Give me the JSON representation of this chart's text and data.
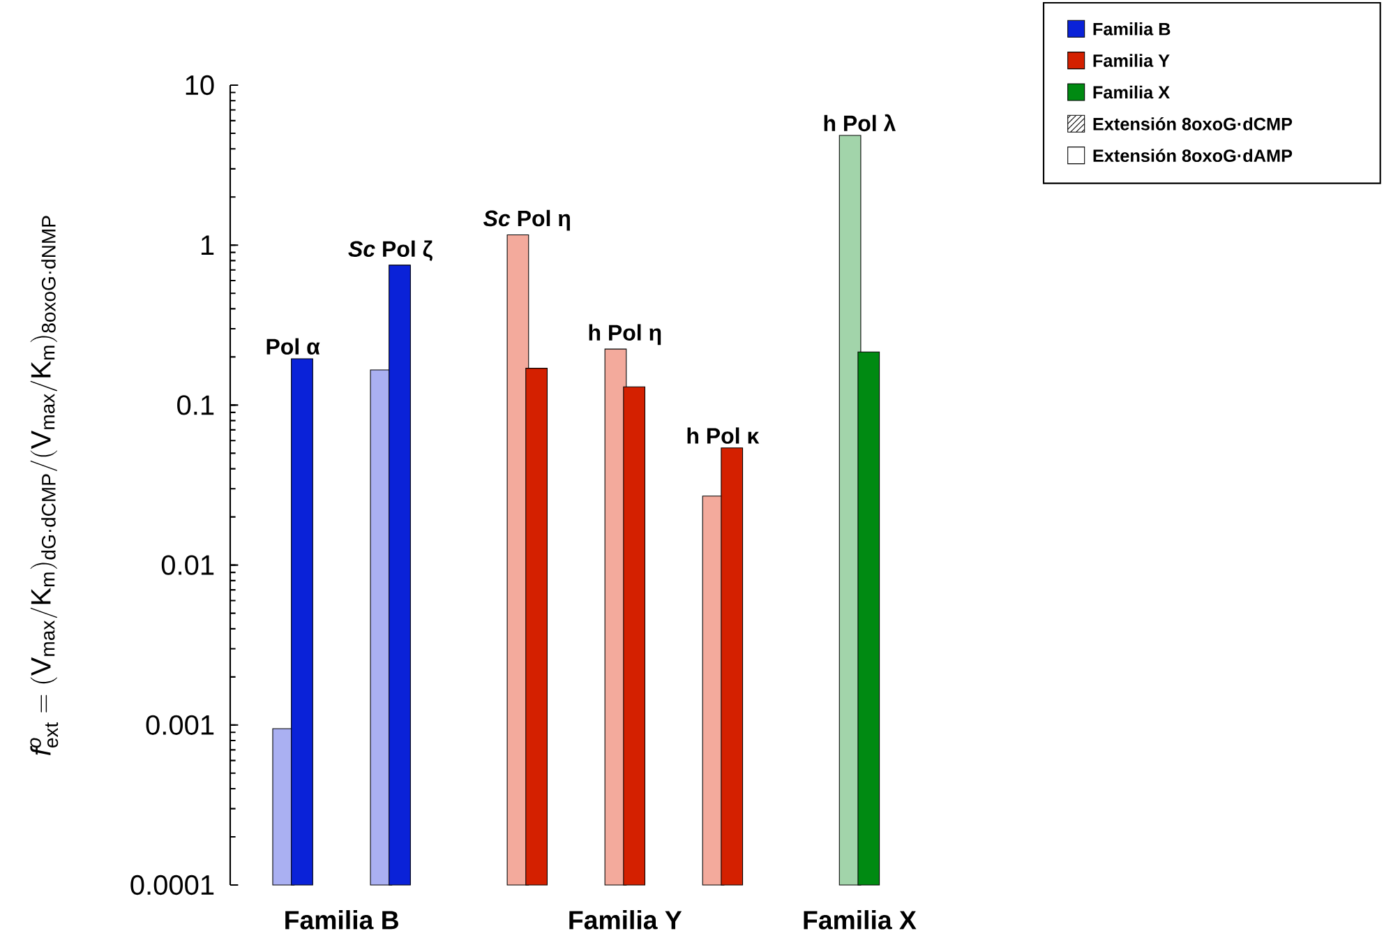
{
  "chart_data": {
    "type": "bar",
    "categories": [
      null,
      null,
      null,
      null,
      null,
      null
    ],
    "ylabel": "f^{o}_{\\mathrm{ext}} = (\\mathrm{V}_{\\mathrm{max}}/\\mathrm{K}_{\\mathrm{m}})_{\\text{dG·dCMP}} / (\\mathrm{V}_{\\mathrm{max}}/\\mathrm{K}_{\\mathrm{m}})_{\\text{8oxoG·dNMP}}",
    "log": true,
    "ylim": [
      0.0001,
      10
    ],
    "yticks": [
      0.0001,
      0.001,
      0.01,
      0.1,
      1,
      10
    ],
    "legend": "top right",
    "annotations": [
      "Familia B",
      "Familia Y",
      "Familia X",
      {
        "text": "Pol α",
        "y": 0.195
      },
      {
        "text": "*Sc* Pol ζ",
        "y": 0.75
      },
      {
        "text": "*Sc* Pol η",
        "y": 1.16
      },
      {
        "text": "h Pol η",
        "y": 0.224
      },
      {
        "text": "h Pol κ",
        "y": 0.054
      },
      {
        "text": "h Pol λ",
        "y": 4.85
      }
    ],
    "series": [
      {
        "name": "Extensión 8oxoG·dCMP",
        "colors": [
          "#aab0f2",
          "#aab0f2",
          "#f3aa9c",
          "#f3aa9c",
          "#f3aa9c",
          "#a2d4aa"
        ],
        "values": [
          0.00095,
          0.166,
          1.16,
          0.224,
          0.027,
          4.85
        ]
      },
      {
        "name": "Extensión 8oxoG·dAMP",
        "colors": [
          "#0a22d8",
          "#0a22d8",
          "#d42000",
          "#d42000",
          "#d42000",
          "#008a12"
        ],
        "values": [
          0.195,
          0.75,
          0.17,
          0.13,
          0.054,
          0.215
        ]
      }
    ]
  }
}
